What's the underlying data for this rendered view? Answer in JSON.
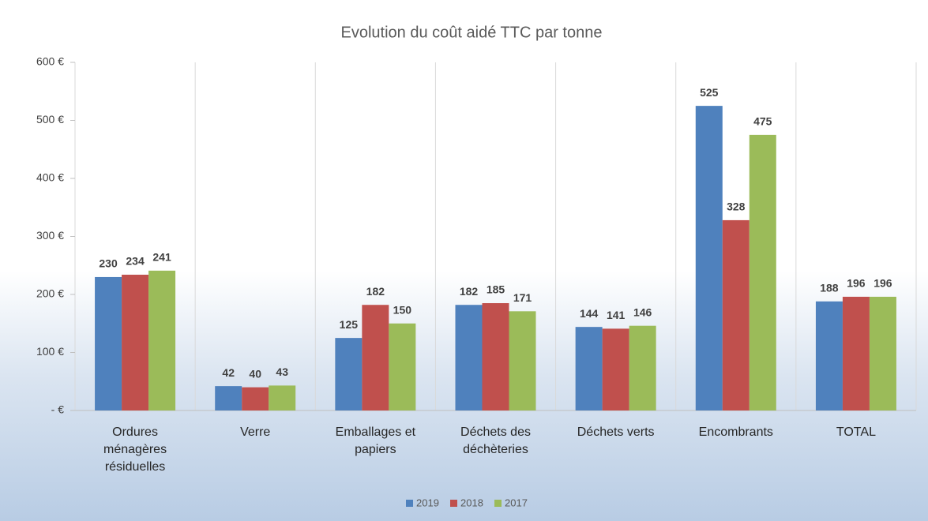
{
  "chart_data": {
    "type": "bar",
    "title": "Evolution du coût aidé TTC par tonne",
    "categories": [
      "Ordures ménagères résiduelles",
      "Verre",
      "Emballages et papiers",
      "Déchets des déchèteries",
      "Déchets verts",
      "Encombrants",
      "TOTAL"
    ],
    "series": [
      {
        "name": "2019",
        "color": "#4f81bd",
        "values": [
          230,
          42,
          125,
          182,
          144,
          525,
          188
        ]
      },
      {
        "name": "2018",
        "color": "#c0504d",
        "values": [
          234,
          40,
          182,
          185,
          141,
          328,
          196
        ]
      },
      {
        "name": "2017",
        "color": "#9bbb59",
        "values": [
          241,
          43,
          150,
          171,
          146,
          475,
          196
        ]
      }
    ],
    "ylim": [
      0,
      600
    ],
    "yticks": [
      {
        "value": 0,
        "label": "-   €"
      },
      {
        "value": 100,
        "label": "100 €"
      },
      {
        "value": 200,
        "label": "200 €"
      },
      {
        "value": 300,
        "label": "300 €"
      },
      {
        "value": 400,
        "label": "400 €"
      },
      {
        "value": 500,
        "label": "500 €"
      },
      {
        "value": 600,
        "label": "600 €"
      }
    ],
    "legend": "bottom"
  }
}
